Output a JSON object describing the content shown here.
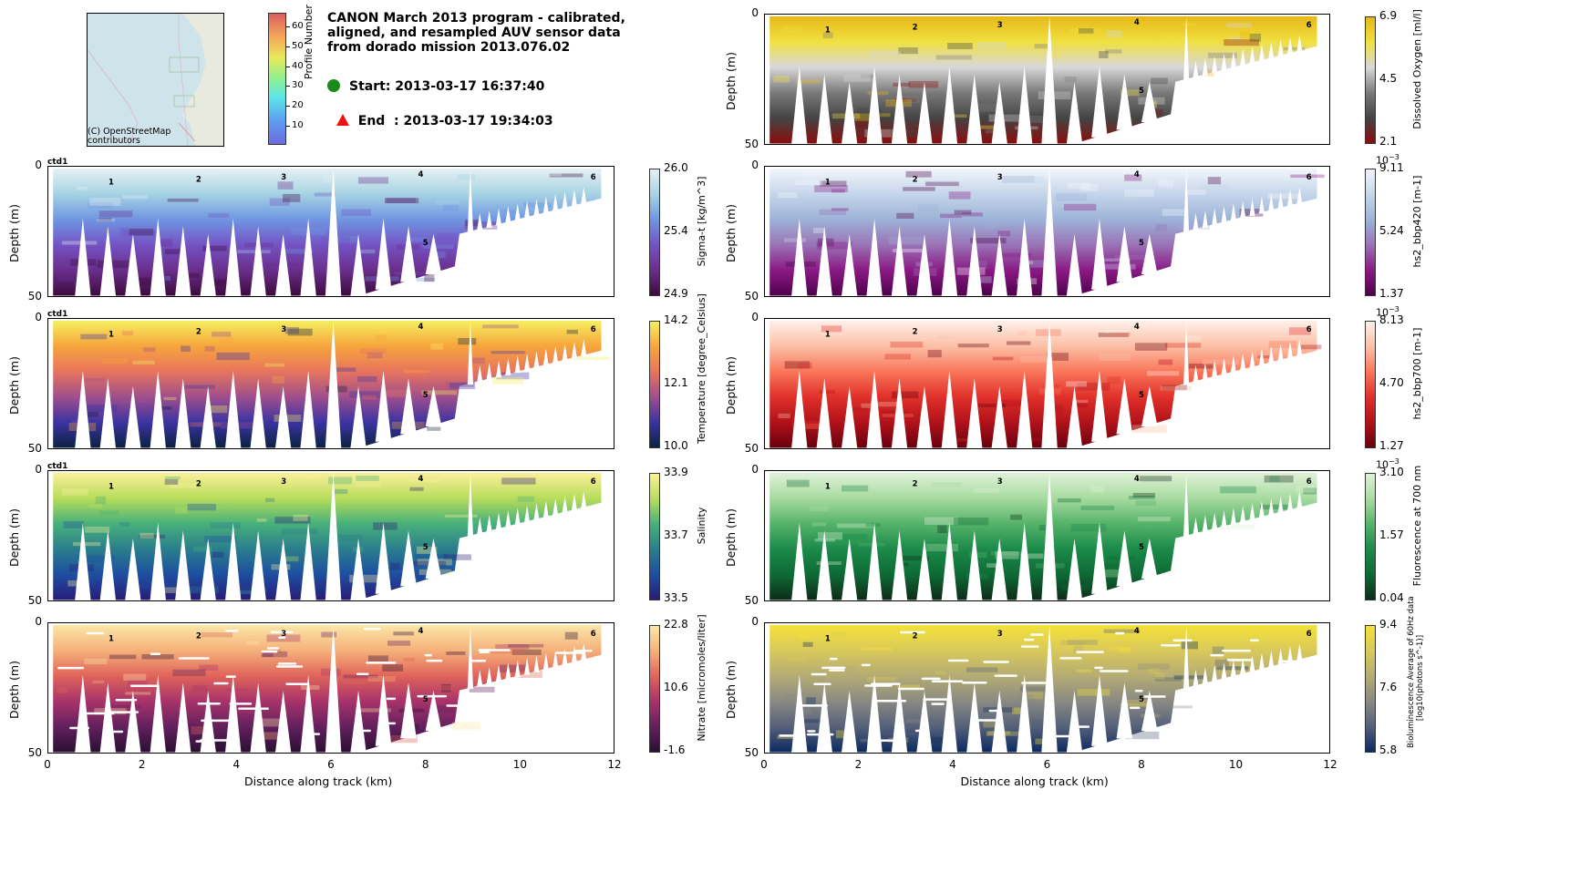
{
  "header": {
    "title": "CANON March 2013 program - calibrated,\naligned, and resampled AUV sensor data\nfrom dorado mission 2013.076.02",
    "start_label": "Start: 2013-03-17 16:37:40",
    "end_label": "End  : 2013-03-17 19:34:03",
    "start_color": "#1a8a1a",
    "end_color": "#ee1111",
    "map_credit": "(C) OpenStreetMap\ncontributors",
    "profile_colorbar": {
      "label": "Profile Number",
      "ticks": [
        "10",
        "20",
        "30",
        "40",
        "50",
        "60"
      ],
      "range": [
        1,
        67
      ]
    }
  },
  "chart_data": {
    "type": "heatmap",
    "xlabel": "Distance along track (km)",
    "ylabel": "Depth (m)",
    "xlim": [
      0,
      12
    ],
    "ylim": [
      50,
      0
    ],
    "xticks": [
      "0",
      "2",
      "4",
      "6",
      "8",
      "10",
      "12"
    ],
    "yticks": [
      "0",
      "50"
    ],
    "profile_markers": [
      {
        "label": "1",
        "x_km": 1.35,
        "depth_m": 4
      },
      {
        "label": "2",
        "x_km": 3.2,
        "depth_m": 3
      },
      {
        "label": "3",
        "x_km": 5.0,
        "depth_m": 2
      },
      {
        "label": "4",
        "x_km": 7.9,
        "depth_m": 1
      },
      {
        "label": "5",
        "x_km": 8.0,
        "depth_m": 27
      },
      {
        "label": "6",
        "x_km": 11.55,
        "depth_m": 2
      }
    ],
    "ctd_label": "ctd1",
    "panels": [
      {
        "id": "sigmat",
        "column": "left",
        "row": 0,
        "variable": "Sigma-t [kg/m^3]",
        "cbar_ticks": [
          "26.0",
          "25.4",
          "24.9"
        ],
        "vmin": 24.9,
        "vmax": 26.0,
        "exponent": "",
        "show_ctd": true,
        "colors": [
          "#e6f1f4",
          "#a6d3e3",
          "#6f96e2",
          "#7453c4",
          "#6a2e8c",
          "#3c0a3c"
        ]
      },
      {
        "id": "temp",
        "column": "left",
        "row": 1,
        "variable": "Temperature [degree_Celsius]",
        "cbar_ticks": [
          "14.2",
          "12.1",
          "10.0"
        ],
        "vmin": 10.0,
        "vmax": 14.2,
        "exponent": "",
        "show_ctd": true,
        "colors": [
          "#f5ef60",
          "#f7a53c",
          "#e7745e",
          "#9f4f8c",
          "#3b33a2",
          "#0b2240"
        ]
      },
      {
        "id": "sal",
        "column": "left",
        "row": 2,
        "variable": "Salinity",
        "cbar_ticks": [
          "33.9",
          "33.7",
          "33.5"
        ],
        "vmin": 33.5,
        "vmax": 33.9,
        "exponent": "",
        "show_ctd": true,
        "colors": [
          "#fbf09a",
          "#b8dd5b",
          "#48b07a",
          "#2a7e8c",
          "#1d4ea0",
          "#281c78"
        ]
      },
      {
        "id": "nitrate",
        "column": "left",
        "row": 3,
        "variable": "Nitrate [micromoles/liter]",
        "cbar_ticks": [
          "22.8",
          "10.6",
          "-1.6"
        ],
        "vmin": -1.6,
        "vmax": 22.8,
        "exponent": "",
        "show_ctd": false,
        "colors": [
          "#fbe6a8",
          "#f5b17a",
          "#e0645a",
          "#a8336a",
          "#62205e",
          "#2b0f33"
        ]
      },
      {
        "id": "oxygen",
        "column": "right",
        "row": -1,
        "variable": "Dissolved Oxygen [ml/l]",
        "cbar_ticks": [
          "6.9",
          "4.5",
          "2.1"
        ],
        "vmin": 2.1,
        "vmax": 6.9,
        "exponent": "",
        "show_ctd": false,
        "colors": [
          "#e6b818",
          "#f0e040",
          "#d8d8d8",
          "#7a7a7a",
          "#444444",
          "#8b0c0c"
        ]
      },
      {
        "id": "bbp420",
        "column": "right",
        "row": 0,
        "variable": "hs2_bbp420 [m-1]",
        "cbar_ticks": [
          "9.11",
          "5.24",
          "1.37"
        ],
        "vmin": 1.37,
        "vmax": 9.11,
        "exponent": "10^-3",
        "show_ctd": false,
        "colors": [
          "#f3f6fb",
          "#c5d6ea",
          "#9db3d8",
          "#9a73b6",
          "#8a1a84",
          "#4d004b"
        ]
      },
      {
        "id": "bbp700",
        "column": "right",
        "row": 1,
        "variable": "hs2_bbp700 [m-1]",
        "cbar_ticks": [
          "8.13",
          "4.70",
          "1.27"
        ],
        "vmin": 1.27,
        "vmax": 8.13,
        "exponent": "10^-3",
        "show_ctd": false,
        "colors": [
          "#fff0ea",
          "#fcc0a6",
          "#f9765a",
          "#e0302a",
          "#b1121a",
          "#67000d"
        ]
      },
      {
        "id": "fluor",
        "column": "right",
        "row": 2,
        "variable": "Fluorescence at 700 nm",
        "cbar_ticks": [
          "3.10",
          "1.57",
          "0.04"
        ],
        "vmin": 0.04,
        "vmax": 3.1,
        "exponent": "10^-3",
        "show_ctd": false,
        "colors": [
          "#dff2d8",
          "#a8dba0",
          "#56b36a",
          "#1b8a4a",
          "#0e6a35",
          "#0d2b19"
        ]
      },
      {
        "id": "biolum",
        "column": "right",
        "row": 3,
        "variable": "Bioluminescence Average of 60Hz data\n[log10(photons s^-1)]",
        "cbar_ticks": [
          "9.4",
          "7.6",
          "5.8"
        ],
        "vmin": 5.8,
        "vmax": 9.4,
        "exponent": "",
        "show_ctd": false,
        "colors": [
          "#f5e13a",
          "#d9c95a",
          "#b4ac74",
          "#8a8a82",
          "#55607a",
          "#0b2a60"
        ]
      }
    ]
  }
}
